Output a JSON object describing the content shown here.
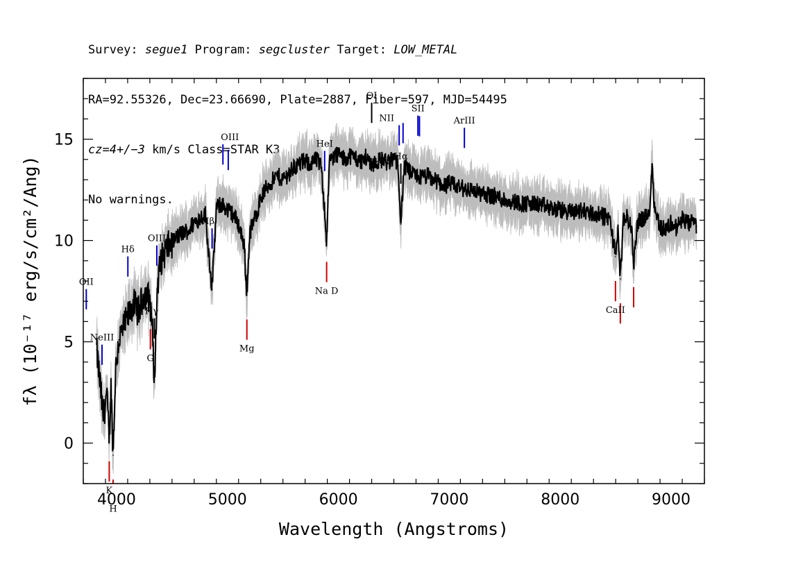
{
  "header": {
    "line1": {
      "survey_label": "Survey:",
      "survey_value": "segue1",
      "program_label": "Program:",
      "program_value": "segcluster",
      "target_label": "Target:",
      "target_value": "LOW_METAL"
    },
    "line2": "RA=92.55326, Dec=23.66690, Plate=2887, Fiber=597, MJD=54495",
    "line3": {
      "redshift_value": "cz=4+/−3",
      "redshift_unit": "km/s",
      "class_text": "Class=STAR K3"
    },
    "line4": "No warnings."
  },
  "chart_data": {
    "type": "line",
    "xlabel": "Wavelength (Angstroms)",
    "ylabel": "fλ (10⁻¹⁷ erg/s/cm²/Ang)",
    "xlim": [
      3700,
      9300
    ],
    "ylim": [
      -2,
      18
    ],
    "x_ticks": [
      4000,
      5000,
      6000,
      7000,
      8000,
      9000
    ],
    "x_tick_labels": [
      "4000",
      "5000",
      "6000",
      "7000",
      "8000",
      "9000"
    ],
    "y_ticks": [
      0,
      5,
      10,
      15
    ],
    "y_tick_labels": [
      "0",
      "5",
      "10",
      "15"
    ],
    "grid": false,
    "series": [
      {
        "role": "flux",
        "color": "#000000",
        "x": [
          3820,
          3850,
          3880,
          3910,
          3934,
          3950,
          3969,
          3990,
          4020,
          4060,
          4101,
          4150,
          4200,
          4250,
          4300,
          4320,
          4340,
          4370,
          4400,
          4450,
          4500,
          4550,
          4600,
          4650,
          4700,
          4750,
          4800,
          4861,
          4900,
          4950,
          5000,
          5050,
          5100,
          5150,
          5175,
          5200,
          5250,
          5300,
          5350,
          5400,
          5450,
          5500,
          5550,
          5600,
          5650,
          5700,
          5750,
          5800,
          5850,
          5893,
          5920,
          5950,
          6000,
          6050,
          6100,
          6150,
          6200,
          6250,
          6300,
          6350,
          6400,
          6450,
          6500,
          6540,
          6563,
          6590,
          6620,
          6650,
          6700,
          6750,
          6800,
          6850,
          6900,
          6950,
          7000,
          7100,
          7200,
          7300,
          7400,
          7500,
          7600,
          7700,
          7800,
          7900,
          8000,
          8100,
          8200,
          8300,
          8400,
          8450,
          8498,
          8520,
          8542,
          8570,
          8600,
          8640,
          8662,
          8700,
          8750,
          8800,
          8830,
          8850,
          8900,
          8950,
          9000,
          9050,
          9100,
          9150,
          9200,
          9230
        ],
        "y": [
          4.6,
          3.0,
          1.2,
          2.4,
          0.3,
          2.8,
          -0.6,
          3.5,
          5.1,
          5.6,
          6.2,
          6.9,
          6.5,
          7.4,
          7.1,
          6.0,
          3.0,
          7.9,
          9.0,
          9.6,
          9.9,
          10.2,
          10.4,
          10.5,
          10.9,
          11.1,
          11.3,
          7.6,
          11.6,
          11.8,
          11.5,
          11.3,
          10.8,
          9.8,
          7.3,
          10.4,
          11.1,
          12.1,
          12.6,
          12.9,
          13.2,
          13.0,
          13.3,
          13.6,
          13.8,
          13.9,
          13.8,
          14.0,
          13.6,
          10.0,
          13.9,
          14.1,
          14.3,
          14.0,
          14.2,
          14.1,
          13.9,
          14.1,
          13.8,
          13.9,
          14.0,
          13.8,
          14.1,
          13.7,
          10.8,
          13.5,
          13.6,
          13.3,
          13.2,
          13.1,
          13.2,
          13.0,
          12.9,
          12.7,
          12.8,
          12.6,
          12.5,
          12.3,
          12.2,
          12.0,
          11.9,
          11.8,
          11.8,
          11.6,
          11.5,
          11.4,
          11.5,
          11.3,
          11.2,
          11.0,
          9.2,
          10.6,
          8.1,
          10.9,
          11.2,
          10.7,
          8.9,
          11.0,
          11.1,
          11.2,
          13.8,
          11.6,
          10.7,
          10.5,
          10.9,
          10.6,
          11.1,
          10.8,
          10.9,
          10.7
        ]
      },
      {
        "role": "error-band",
        "color": "#bdbdbd",
        "values_mode": "flux ± noise envelope",
        "noise_sigma": 0.8
      }
    ],
    "emission_lines": [
      {
        "label": "OII",
        "wavelength": 3727,
        "color": "#0000cc"
      },
      {
        "label": "NeIII",
        "wavelength": 3869,
        "color": "#0000cc"
      },
      {
        "label": "Hδ",
        "wavelength": 4102,
        "color": "#0000cc"
      },
      {
        "label": "Hγ",
        "wavelength": 4341,
        "color": "#000000"
      },
      {
        "label": "OIII",
        "wavelength": 4363,
        "color": "#0000cc"
      },
      {
        "label": "Hβ",
        "wavelength": 4861,
        "color": "#0000cc"
      },
      {
        "label": "OIII",
        "wavelength": 4959,
        "color": "#0000cc"
      },
      {
        "label": "OIII",
        "wavelength": 5007,
        "color": "#0000cc"
      },
      {
        "label": "HeI",
        "wavelength": 5876,
        "color": "#0000cc"
      },
      {
        "label": "OI",
        "wavelength": 6300,
        "color": "#000000"
      },
      {
        "label": "NII",
        "wavelength": 6548,
        "color": "#0000cc"
      },
      {
        "label": "Hα",
        "wavelength": 6563,
        "color": "#000000"
      },
      {
        "label": "NII",
        "wavelength": 6583,
        "color": "#0000cc"
      },
      {
        "label": "SII",
        "wavelength": 6717,
        "color": "#0000cc"
      },
      {
        "label": "SII",
        "wavelength": 6731,
        "color": "#0000cc"
      },
      {
        "label": "ArIII",
        "wavelength": 7136,
        "color": "#0000cc"
      }
    ],
    "absorption_lines": [
      {
        "label": "K",
        "wavelength": 3934,
        "color": "#cc0000"
      },
      {
        "label": "H",
        "wavelength": 3969,
        "color": "#cc0000"
      },
      {
        "label": "G",
        "wavelength": 4305,
        "color": "#cc0000"
      },
      {
        "label": "Mg",
        "wavelength": 5175,
        "color": "#cc0000"
      },
      {
        "label": "Na D",
        "wavelength": 5894,
        "color": "#cc0000"
      },
      {
        "label": "CaII",
        "wavelength": 8498,
        "color": "#cc0000"
      },
      {
        "label": "CaII",
        "wavelength": 8542,
        "color": "#cc0000"
      },
      {
        "label": "CaII",
        "wavelength": 8662,
        "color": "#cc0000"
      }
    ]
  }
}
